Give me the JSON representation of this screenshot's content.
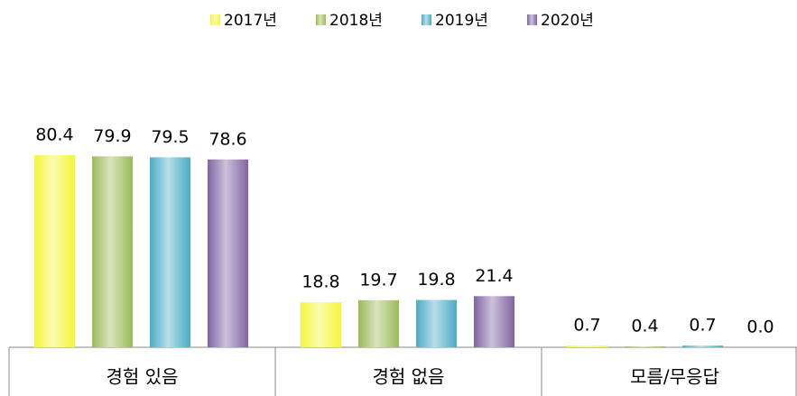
{
  "chart_data": {
    "type": "bar",
    "categories": [
      "경험 있음",
      "경험 없음",
      "모름/무응답"
    ],
    "series": [
      {
        "name": "2017년",
        "color": "#f5f53a",
        "values": [
          80.4,
          18.8,
          0.7
        ],
        "value_labels": [
          "80.4",
          "18.8",
          "0.7"
        ]
      },
      {
        "name": "2018년",
        "color": "#9bbb59",
        "values": [
          79.9,
          19.7,
          0.4
        ],
        "value_labels": [
          "79.9",
          "19.7",
          "0.4"
        ]
      },
      {
        "name": "2019년",
        "color": "#4bacc6",
        "values": [
          79.5,
          19.8,
          0.7
        ],
        "value_labels": [
          "79.5",
          "19.8",
          "0.7"
        ]
      },
      {
        "name": "2020년",
        "color": "#8064a2",
        "values": [
          78.6,
          21.4,
          0.0
        ],
        "value_labels": [
          "78.6",
          "21.4",
          "0.0"
        ]
      }
    ],
    "legend": "top"
  }
}
